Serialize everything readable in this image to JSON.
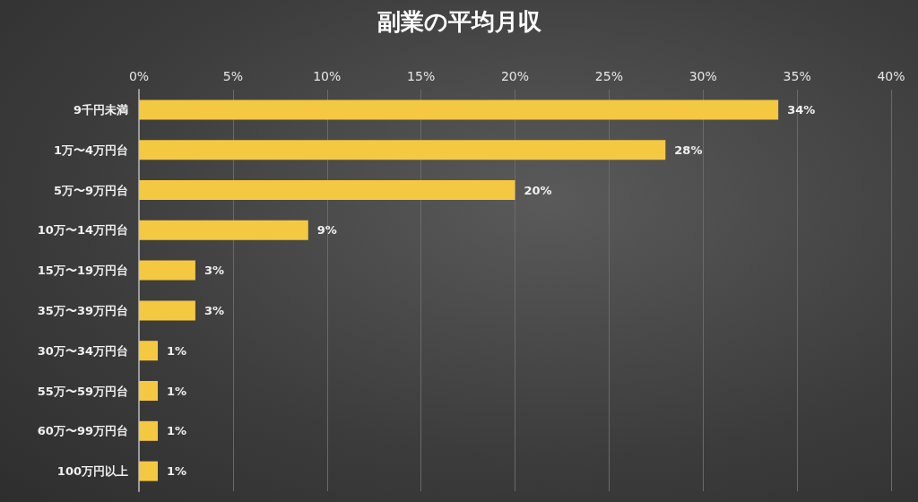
{
  "chart_data": {
    "type": "bar",
    "orientation": "horizontal",
    "title": "副業の平均月収",
    "categories": [
      "9千円未満",
      "1万〜4万円台",
      "5万〜9万円台",
      "10万〜14万円台",
      "15万〜19万円台",
      "35万〜39万円台",
      "30万〜34万円台",
      "55万〜59万円台",
      "60万〜99万円台",
      "100万円以上"
    ],
    "values": [
      34,
      28,
      20,
      9,
      3,
      3,
      1,
      1,
      1,
      1
    ],
    "value_labels": [
      "34%",
      "28%",
      "20%",
      "9%",
      "3%",
      "3%",
      "1%",
      "1%",
      "1%",
      "1%"
    ],
    "color": "#f5c842",
    "xlim": [
      0,
      40
    ],
    "xticks": [
      {
        "value": 0,
        "label": "0%"
      },
      {
        "value": 5,
        "label": "5%"
      },
      {
        "value": 10,
        "label": "10%"
      },
      {
        "value": 15,
        "label": "15%"
      },
      {
        "value": 20,
        "label": "20%"
      },
      {
        "value": 25,
        "label": "25%"
      },
      {
        "value": 30,
        "label": "30%"
      },
      {
        "value": 35,
        "label": "35%"
      },
      {
        "value": 40,
        "label": "40%"
      }
    ],
    "grid": "x"
  }
}
